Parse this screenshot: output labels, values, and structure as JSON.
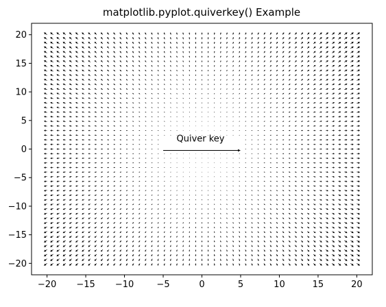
{
  "chart_data": {
    "type": "quiver",
    "title": "matplotlib.pyplot.quiverkey() Example",
    "xlabel": "",
    "ylabel": "",
    "xlim": [
      -22,
      22
    ],
    "ylim": [
      -22,
      22
    ],
    "grid": false,
    "x_ticks": [
      -20,
      -15,
      -10,
      -5,
      0,
      5,
      10,
      15,
      20
    ],
    "x_tick_labels": [
      "−20",
      "−15",
      "−10",
      "−5",
      "0",
      "5",
      "10",
      "15",
      "20"
    ],
    "y_ticks": [
      -20,
      -15,
      -10,
      -5,
      0,
      5,
      10,
      15,
      20
    ],
    "y_tick_labels": [
      "−20",
      "−15",
      "−10",
      "−5",
      "0",
      "5",
      "10",
      "15",
      "20"
    ],
    "field": {
      "x_range": [
        -20,
        20
      ],
      "y_range": [
        -20,
        20
      ],
      "step": 0.8,
      "u": "x",
      "v": "y",
      "color": "#000000"
    },
    "quiverkey": {
      "label": "Quiver key",
      "position": [
        0,
        0
      ],
      "length": 10
    }
  }
}
